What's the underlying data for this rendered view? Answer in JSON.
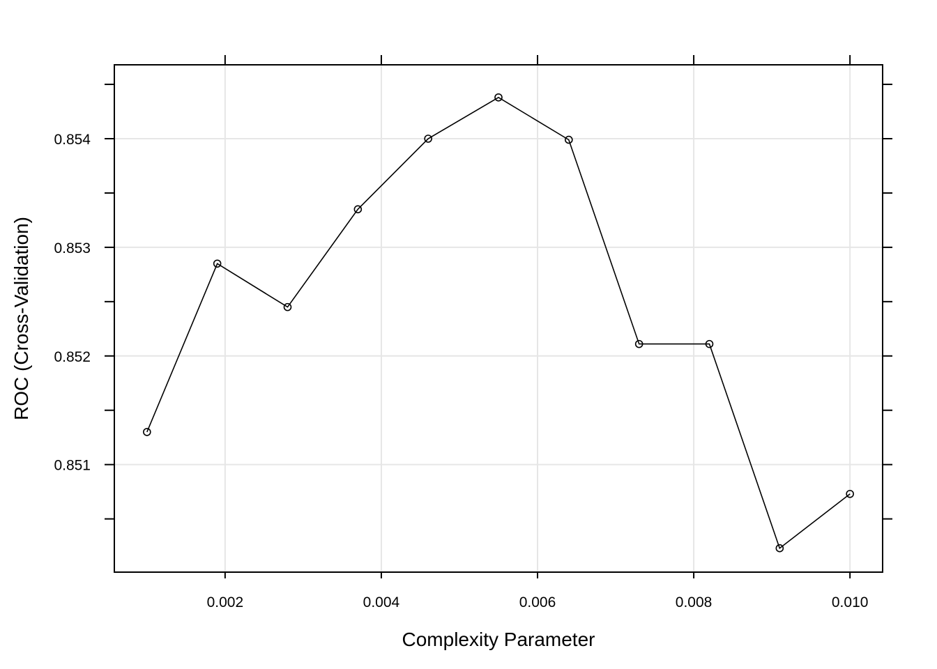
{
  "chart_data": {
    "type": "line",
    "xlabel": "Complexity Parameter",
    "ylabel": "ROC (Cross-Validation)",
    "xlim": [
      0.000582,
      0.010418
    ],
    "ylim": [
      0.85001,
      0.85468
    ],
    "x_ticks": [
      0.002,
      0.004,
      0.006,
      0.008,
      0.01
    ],
    "x_tick_labels": [
      "0.002",
      "0.004",
      "0.006",
      "0.008",
      "0.010"
    ],
    "y_ticks": [
      0.851,
      0.852,
      0.853,
      0.854
    ],
    "y_tick_labels": [
      "0.851",
      "0.852",
      "0.853",
      "0.854"
    ],
    "grid": true,
    "series": [
      {
        "x": [
          0.001,
          0.0019,
          0.0028,
          0.0037,
          0.0046,
          0.0055,
          0.0064,
          0.0073,
          0.0082,
          0.0091,
          0.01
        ],
        "y": [
          0.8513,
          0.85285,
          0.85245,
          0.85335,
          0.854,
          0.85438,
          0.85399,
          0.85211,
          0.85211,
          0.85023,
          0.85073
        ]
      }
    ]
  }
}
